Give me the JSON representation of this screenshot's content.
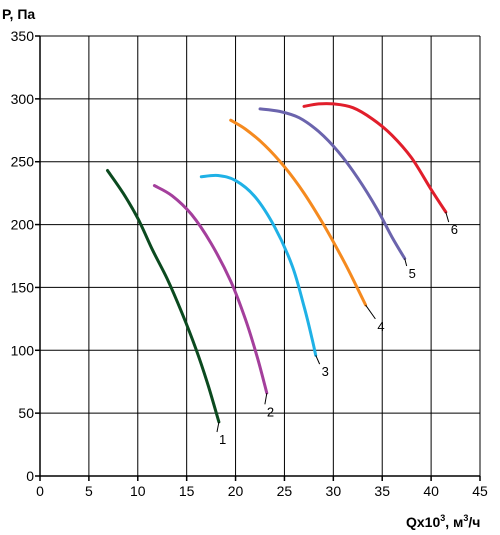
{
  "chart_data": {
    "type": "line",
    "title": "",
    "ylabel": "P, Па",
    "xlabel_prefix": "Qx10",
    "xlabel_exp": "3",
    "xlabel_unit_a": ", м",
    "xlabel_unit_exp": "3",
    "xlabel_unit_b": "/ч",
    "xlim": [
      0,
      45
    ],
    "ylim": [
      0,
      350
    ],
    "xticks": [
      0,
      5,
      10,
      15,
      20,
      25,
      30,
      35,
      40,
      45
    ],
    "yticks": [
      0,
      50,
      100,
      150,
      200,
      250,
      300,
      350
    ],
    "grid": true,
    "series": [
      {
        "label": "1",
        "color": "#0b4a1f",
        "points": [
          [
            6.9,
            243
          ],
          [
            8.5,
            225
          ],
          [
            10,
            205
          ],
          [
            11.5,
            180
          ],
          [
            13,
            157
          ],
          [
            14.5,
            130
          ],
          [
            16,
            100
          ],
          [
            17.2,
            72
          ],
          [
            18.3,
            43
          ]
        ],
        "tail": [
          [
            18.3,
            43
          ],
          [
            18.1,
            35
          ]
        ]
      },
      {
        "label": "2",
        "color": "#a43f9c",
        "points": [
          [
            11.7,
            231
          ],
          [
            13.5,
            223
          ],
          [
            15.5,
            208
          ],
          [
            17.5,
            185
          ],
          [
            19.5,
            155
          ],
          [
            21,
            125
          ],
          [
            22.2,
            95
          ],
          [
            23.2,
            66
          ]
        ],
        "tail": [
          [
            23.2,
            66
          ],
          [
            23,
            57
          ]
        ]
      },
      {
        "label": "3",
        "color": "#1fb1e6",
        "points": [
          [
            16.5,
            238
          ],
          [
            18.2,
            239
          ],
          [
            20,
            235
          ],
          [
            22,
            222
          ],
          [
            24,
            198
          ],
          [
            25.8,
            167
          ],
          [
            27,
            135
          ],
          [
            27.8,
            110
          ],
          [
            28.2,
            96
          ]
        ],
        "tail": [
          [
            28.2,
            96
          ],
          [
            28.6,
            89
          ]
        ]
      },
      {
        "label": "4",
        "color": "#f58a1f",
        "points": [
          [
            19.5,
            283
          ],
          [
            21,
            276
          ],
          [
            23,
            263
          ],
          [
            25,
            246
          ],
          [
            27,
            225
          ],
          [
            29,
            200
          ],
          [
            31,
            172
          ],
          [
            32.3,
            152
          ],
          [
            33.3,
            136
          ]
        ],
        "tail": [
          [
            33.3,
            136
          ],
          [
            34.3,
            125
          ]
        ]
      },
      {
        "label": "5",
        "color": "#6b64ad",
        "points": [
          [
            22.5,
            292
          ],
          [
            24.5,
            290
          ],
          [
            26.5,
            285
          ],
          [
            28.5,
            274
          ],
          [
            30.5,
            258
          ],
          [
            32.5,
            237
          ],
          [
            34.5,
            212
          ],
          [
            36,
            190
          ],
          [
            37.3,
            173
          ]
        ],
        "tail": [
          [
            37.3,
            173
          ],
          [
            37.5,
            167
          ]
        ]
      },
      {
        "label": "6",
        "color": "#e11e2b",
        "points": [
          [
            27,
            294
          ],
          [
            28.5,
            296
          ],
          [
            30,
            296
          ],
          [
            32,
            293
          ],
          [
            34,
            284
          ],
          [
            36,
            271
          ],
          [
            38,
            253
          ],
          [
            40,
            228
          ],
          [
            41.5,
            210
          ]
        ],
        "tail": [
          [
            41.5,
            210
          ],
          [
            41.8,
            202
          ]
        ]
      }
    ]
  }
}
